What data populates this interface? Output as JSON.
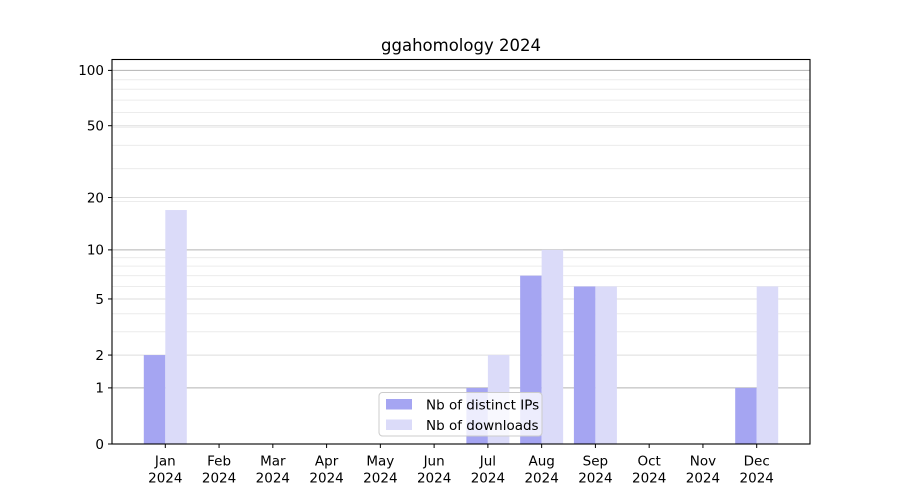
{
  "chart_data": {
    "type": "bar",
    "title": "ggahomology 2024",
    "categories": [
      "Jan 2024",
      "Feb 2024",
      "Mar 2024",
      "Apr 2024",
      "May 2024",
      "Jun 2024",
      "Jul 2024",
      "Aug 2024",
      "Sep 2024",
      "Oct 2024",
      "Nov 2024",
      "Dec 2024"
    ],
    "series": [
      {
        "name": "Nb of distinct IPs",
        "color": "#a5a5f2",
        "values": [
          2,
          0,
          0,
          0,
          0,
          0,
          1,
          7,
          6,
          0,
          0,
          1
        ]
      },
      {
        "name": "Nb of downloads",
        "color": "#dbdbf9",
        "values": [
          17,
          0,
          0,
          0,
          0,
          0,
          2,
          10,
          6,
          0,
          0,
          6
        ]
      }
    ],
    "xlabel": "",
    "ylabel": "",
    "y_axis": {
      "scale": "log1p",
      "tick_values": [
        0,
        1,
        2,
        5,
        10,
        20,
        50,
        100
      ],
      "major_grid_values": [
        1,
        10,
        100
      ],
      "light_grid_values": [
        2,
        5,
        20,
        50
      ],
      "minor_grid_values": [
        3,
        4,
        6,
        7,
        8,
        9,
        19,
        29,
        39,
        49,
        59,
        69,
        79,
        89
      ],
      "range_top": 115
    },
    "legend": {
      "position": "bottom-center-inside",
      "entries": [
        "Nb of distinct IPs",
        "Nb of downloads"
      ]
    },
    "grid": true,
    "colors": {
      "major_gridline": "#b3b3b3",
      "light_gridline": "#dedede",
      "minor_gridline": "#ececec",
      "axis": "#000000",
      "text": "#000000",
      "legend_border": "#cccccc",
      "legend_background": "#ffffff"
    }
  }
}
